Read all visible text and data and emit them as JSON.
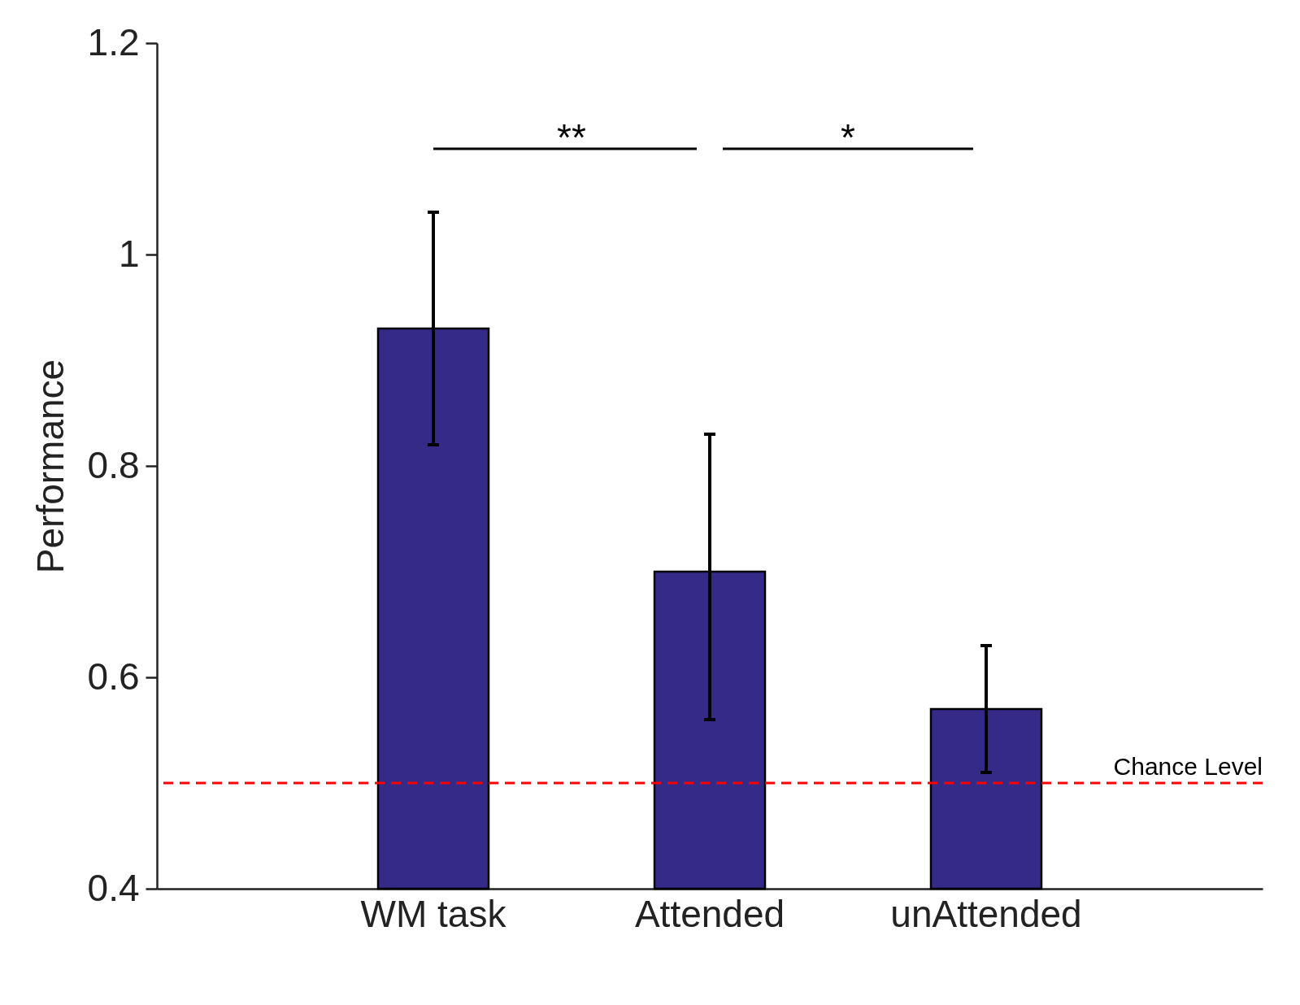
{
  "chart_data": {
    "type": "bar",
    "ylabel": "Performance",
    "categories": [
      "WM task",
      "Attended",
      "unAttended"
    ],
    "values": [
      0.93,
      0.7,
      0.57
    ],
    "color": "#352a87",
    "errors": [
      [
        0.82,
        1.04
      ],
      [
        0.56,
        0.83
      ],
      [
        0.51,
        0.63
      ]
    ],
    "ylim": [
      0.4,
      1.2
    ],
    "yticks": [
      0.4,
      0.6,
      0.8,
      1,
      1.2
    ],
    "grid": false,
    "ref_lines": [
      {
        "axis": "y",
        "value": 0.5,
        "label": "Chance Level",
        "color": "#ff0000",
        "line_style": "dashed"
      }
    ],
    "annotations": [
      "**",
      "*"
    ]
  }
}
